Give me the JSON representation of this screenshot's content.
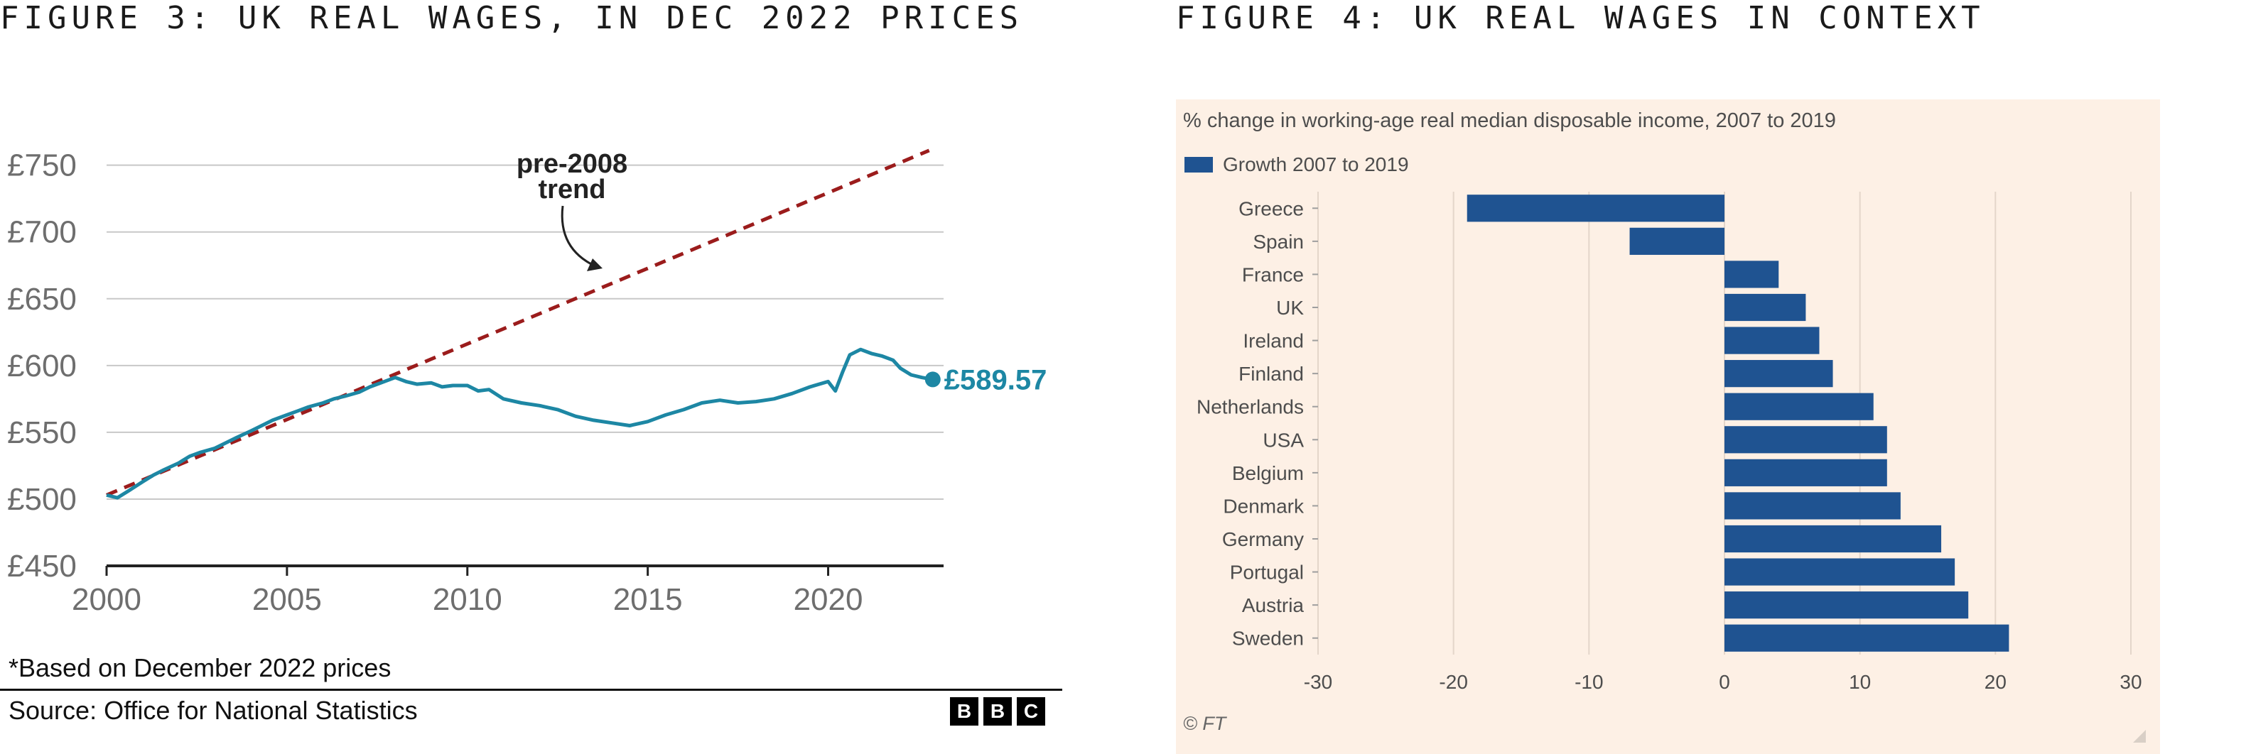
{
  "figure3": {
    "title": "FIGURE 3: UK REAL WAGES, IN DEC 2022 PRICES",
    "note": "*Based on December 2022 prices",
    "source": "Source: Office for National Statistics",
    "logo": [
      "B",
      "B",
      "C"
    ],
    "annotation_line1": "pre-2008",
    "annotation_line2": "trend",
    "end_label": "£589.57"
  },
  "figure4": {
    "title": "FIGURE 4: UK REAL WAGES IN CONTEXT",
    "subtitle": "% change in working-age real median disposable income, 2007 to 2019",
    "legend_label": "Growth 2007 to 2019",
    "credit": "© FT"
  },
  "colors": {
    "wage_line": "#1d87a4",
    "trend_line": "#9b1c1c",
    "bar": "#1f5391",
    "ft_background": "#fdf0e5"
  },
  "chart_data": [
    {
      "type": "line",
      "title": "FIGURE 3: UK REAL WAGES, IN DEC 2022 PRICES",
      "xlim": [
        2000,
        2023.2
      ],
      "ylim": [
        450,
        770
      ],
      "xticks": [
        2000,
        2005,
        2010,
        2015,
        2020
      ],
      "xtick_labels": [
        "2000",
        "2005",
        "2010",
        "2015",
        "2020"
      ],
      "yticks": [
        450,
        500,
        550,
        600,
        650,
        700,
        750
      ],
      "ytick_labels": [
        "£450",
        "£500",
        "£550",
        "£600",
        "£650",
        "£700",
        "£750"
      ],
      "grid": true,
      "series": [
        {
          "x": [
            2000,
            2000.3,
            2000.6,
            2001,
            2001.3,
            2001.6,
            2002,
            2002.3,
            2002.6,
            2003,
            2003.3,
            2003.6,
            2004,
            2004.3,
            2004.6,
            2005,
            2005.3,
            2005.6,
            2006,
            2006.3,
            2006.6,
            2007,
            2007.3,
            2007.6,
            2008,
            2008.3,
            2008.6,
            2009,
            2009.3,
            2009.6,
            2010,
            2010.3,
            2010.6,
            2011,
            2011.5,
            2012,
            2012.5,
            2013,
            2013.5,
            2014,
            2014.5,
            2015,
            2015.5,
            2016,
            2016.5,
            2017,
            2017.5,
            2018,
            2018.5,
            2019,
            2019.5,
            2020,
            2020.2,
            2020.4,
            2020.6,
            2020.9,
            2021.2,
            2021.5,
            2021.8,
            2022,
            2022.3,
            2022.6,
            2022.9
          ],
          "values": [
            503,
            501,
            506,
            513,
            518,
            522,
            527,
            532,
            535,
            538,
            542,
            546,
            551,
            555,
            559,
            563,
            566,
            569,
            572,
            575,
            577,
            580,
            584,
            587,
            591,
            588,
            586,
            587,
            584,
            585,
            585,
            581,
            582,
            575,
            572,
            570,
            567,
            562,
            559,
            557,
            555,
            558,
            563,
            567,
            572,
            574,
            572,
            573,
            575,
            579,
            584,
            588,
            581,
            595,
            608,
            612,
            609,
            607,
            604,
            598,
            593,
            591,
            589.57
          ]
        },
        {
          "name": "pre-2008 trend",
          "x": [
            2000,
            2022.8
          ],
          "values": [
            503,
            761
          ]
        }
      ]
    },
    {
      "type": "bar",
      "orientation": "horizontal",
      "title": "% change in working-age real median disposable income, 2007 to 2019",
      "categories": [
        "Greece",
        "Spain",
        "France",
        "UK",
        "Ireland",
        "Finland",
        "Netherlands",
        "USA",
        "Belgium",
        "Denmark",
        "Germany",
        "Portugal",
        "Austria",
        "Sweden"
      ],
      "series": [
        {
          "name": "Growth 2007 to 2019",
          "values": [
            -19,
            -7,
            4,
            6,
            7,
            8,
            11,
            12,
            12,
            13,
            16,
            17,
            18,
            21
          ]
        }
      ],
      "xlim": [
        -30,
        30
      ],
      "xticks": [
        -30,
        -20,
        -10,
        0,
        10,
        20,
        30
      ],
      "xtick_labels": [
        "-30",
        "-20",
        "-10",
        "0",
        "10",
        "20",
        "30"
      ],
      "grid": true,
      "legend": "top-left"
    }
  ]
}
